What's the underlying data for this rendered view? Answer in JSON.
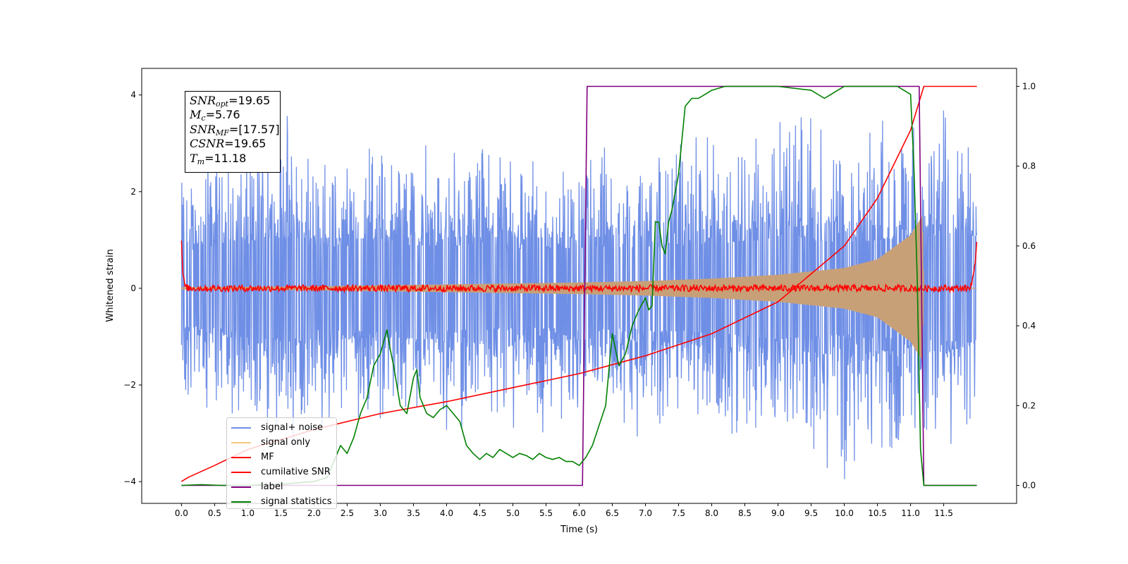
{
  "chart_data": {
    "type": "line",
    "xlabel": "Time (s)",
    "ylabel": "Whitened strain",
    "xlim": [
      -0.6,
      12.6
    ],
    "ylim": [
      -4.45,
      4.55
    ],
    "y2lim": [
      -0.045,
      1.045
    ],
    "x_ticks": [
      0.0,
      0.5,
      1.0,
      1.5,
      2.0,
      2.5,
      3.0,
      3.5,
      4.0,
      4.5,
      5.0,
      5.5,
      6.0,
      6.5,
      7.0,
      7.5,
      8.0,
      8.5,
      9.0,
      9.5,
      10.0,
      10.5,
      11.0,
      11.5
    ],
    "x_tick_labels": [
      "0.0",
      "0.5",
      "1.0",
      "1.5",
      "2.0",
      "2.5",
      "3.0",
      "3.5",
      "4.0",
      "4.5",
      "5.0",
      "5.5",
      "6.0",
      "6.5",
      "7.0",
      "7.5",
      "8.0",
      "8.5",
      "9.0",
      "9.5",
      "10.0",
      "10.5",
      "11.0",
      "11.5"
    ],
    "y_ticks": [
      -4,
      -2,
      0,
      2,
      4
    ],
    "y_tick_labels": [
      "−4",
      "−2",
      "0",
      "2",
      "4"
    ],
    "y2_ticks": [
      0.0,
      0.2,
      0.4,
      0.6,
      0.8,
      1.0
    ],
    "y2_tick_labels": [
      "0.0",
      "0.2",
      "0.4",
      "0.6",
      "0.8",
      "1.0"
    ],
    "grid": false,
    "legend_position": "lower-left",
    "series": [
      {
        "name": "signal+ noise",
        "color": "#6f8fe6",
        "axis": "left",
        "kind": "noise_band",
        "x_range": [
          0.0,
          12.0
        ],
        "envelope_upper": [
          [
            0.0,
            2.2
          ],
          [
            1.0,
            2.5
          ],
          [
            1.5,
            4.1
          ],
          [
            2.0,
            2.4
          ],
          [
            3.0,
            2.6
          ],
          [
            4.0,
            2.5
          ],
          [
            5.0,
            2.3
          ],
          [
            6.0,
            2.4
          ],
          [
            7.0,
            2.4
          ],
          [
            8.0,
            2.6
          ],
          [
            9.0,
            3.0
          ],
          [
            10.0,
            2.7
          ],
          [
            11.0,
            3.0
          ],
          [
            12.0,
            3.2
          ]
        ],
        "envelope_lower": [
          [
            0.0,
            -2.4
          ],
          [
            1.0,
            -2.9
          ],
          [
            2.0,
            -3.0
          ],
          [
            3.0,
            -2.9
          ],
          [
            4.0,
            -3.0
          ],
          [
            5.0,
            -3.0
          ],
          [
            6.0,
            -3.0
          ],
          [
            7.0,
            -3.1
          ],
          [
            8.0,
            -3.4
          ],
          [
            9.0,
            -3.5
          ],
          [
            10.0,
            -4.0
          ],
          [
            11.0,
            -3.4
          ],
          [
            11.5,
            -3.8
          ],
          [
            12.0,
            -3.0
          ]
        ]
      },
      {
        "name": "signal only",
        "color": "#c8a078",
        "axis": "left",
        "kind": "chirp",
        "amplitude": [
          [
            0.0,
            0.02
          ],
          [
            2.0,
            0.04
          ],
          [
            4.0,
            0.08
          ],
          [
            6.0,
            0.12
          ],
          [
            7.0,
            0.15
          ],
          [
            8.0,
            0.2
          ],
          [
            9.0,
            0.28
          ],
          [
            10.0,
            0.42
          ],
          [
            10.5,
            0.6
          ],
          [
            11.0,
            1.1
          ],
          [
            11.18,
            1.5
          ],
          [
            11.2,
            0.0
          ],
          [
            12.0,
            0.0
          ]
        ]
      },
      {
        "name": "MF",
        "color": "#ff0000",
        "axis": "left",
        "kind": "mf_noise",
        "x": [
          0.0,
          0.02,
          0.05,
          0.1,
          11.9,
          11.98,
          12.0
        ],
        "y": [
          1.0,
          0.3,
          0.05,
          0.0,
          0.0,
          0.5,
          0.95
        ],
        "noise_amplitude": 0.07
      },
      {
        "name": "cumilative SNR",
        "color": "#ff0000",
        "axis": "right",
        "x": [
          0.0,
          0.1,
          0.5,
          1.0,
          2.0,
          3.0,
          4.0,
          5.0,
          6.0,
          7.0,
          8.0,
          9.0,
          10.0,
          10.5,
          11.0,
          11.2,
          12.0
        ],
        "y": [
          0.01,
          0.02,
          0.05,
          0.09,
          0.14,
          0.18,
          0.21,
          0.245,
          0.28,
          0.325,
          0.38,
          0.46,
          0.6,
          0.72,
          0.89,
          1.0,
          1.0
        ]
      },
      {
        "name": "label",
        "color": "#800080",
        "axis": "right",
        "x": [
          0.0,
          6.05,
          6.12,
          11.13,
          11.2,
          12.0
        ],
        "y": [
          0.0,
          0.0,
          1.0,
          1.0,
          0.0,
          0.0
        ]
      },
      {
        "name": "signal statistics",
        "color": "#008000",
        "axis": "right",
        "x": [
          0.0,
          0.3,
          0.6,
          1.0,
          1.5,
          2.0,
          2.2,
          2.3,
          2.4,
          2.5,
          2.6,
          2.7,
          2.8,
          2.9,
          3.0,
          3.1,
          3.15,
          3.2,
          3.3,
          3.4,
          3.5,
          3.55,
          3.6,
          3.7,
          3.8,
          3.9,
          4.0,
          4.1,
          4.2,
          4.3,
          4.4,
          4.5,
          4.6,
          4.7,
          4.8,
          4.9,
          5.0,
          5.1,
          5.2,
          5.3,
          5.4,
          5.5,
          5.6,
          5.7,
          5.8,
          5.9,
          6.0,
          6.1,
          6.2,
          6.3,
          6.4,
          6.5,
          6.55,
          6.6,
          6.7,
          6.8,
          6.9,
          7.0,
          7.05,
          7.1,
          7.15,
          7.2,
          7.25,
          7.3,
          7.35,
          7.4,
          7.5,
          7.6,
          7.7,
          7.8,
          7.9,
          8.0,
          8.2,
          8.5,
          9.0,
          9.5,
          9.7,
          9.8,
          9.9,
          10.0,
          10.2,
          10.5,
          10.8,
          11.0,
          11.05,
          11.1,
          11.15,
          11.2,
          11.3,
          12.0
        ],
        "y": [
          0.0,
          0.002,
          0.0,
          0.0,
          0.003,
          0.01,
          0.02,
          0.06,
          0.1,
          0.08,
          0.12,
          0.18,
          0.22,
          0.3,
          0.33,
          0.39,
          0.34,
          0.3,
          0.2,
          0.18,
          0.27,
          0.29,
          0.22,
          0.18,
          0.17,
          0.19,
          0.2,
          0.18,
          0.16,
          0.1,
          0.08,
          0.065,
          0.08,
          0.07,
          0.09,
          0.08,
          0.07,
          0.08,
          0.075,
          0.065,
          0.08,
          0.07,
          0.065,
          0.07,
          0.06,
          0.06,
          0.05,
          0.07,
          0.1,
          0.15,
          0.2,
          0.38,
          0.34,
          0.3,
          0.33,
          0.4,
          0.44,
          0.47,
          0.44,
          0.45,
          0.66,
          0.66,
          0.6,
          0.58,
          0.66,
          0.69,
          0.78,
          0.95,
          0.97,
          0.97,
          0.98,
          0.99,
          1.0,
          1.0,
          1.0,
          0.99,
          0.97,
          0.98,
          0.99,
          1.0,
          1.0,
          1.0,
          1.0,
          0.98,
          0.8,
          0.52,
          0.09,
          0.0,
          0.0,
          0.0
        ]
      }
    ]
  },
  "stats": {
    "snr_opt_sym": "SNR",
    "snr_opt_sub": "opt",
    "snr_opt_val": "=19.65",
    "mc_sym": "M",
    "mc_sub": "c",
    "mc_val": "=5.76",
    "snr_mf_sym": "SNR",
    "snr_mf_sub": "MF",
    "snr_mf_val": "=[17.57]",
    "csnr_sym": "CSNR",
    "csnr_val": "=19.65",
    "tm_sym": "T",
    "tm_sub": "m",
    "tm_val": "=11.18"
  }
}
